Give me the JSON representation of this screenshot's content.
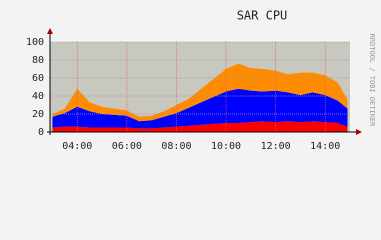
{
  "chart_data": {
    "type": "stacked-area",
    "title": "SAR CPU",
    "credit": "RRDTOOL / TOBI OETIKER",
    "x": [
      3.0,
      3.5,
      4.0,
      4.5,
      5.0,
      5.5,
      6.0,
      6.5,
      7.0,
      7.5,
      8.0,
      8.5,
      9.0,
      9.5,
      10.0,
      10.5,
      11.0,
      11.5,
      12.0,
      12.5,
      13.0,
      13.5,
      14.0,
      14.5,
      14.9
    ],
    "series": [
      {
        "color": "#ff0000",
        "values": [
          5,
          6,
          6,
          5,
          5,
          5,
          5,
          4,
          4,
          5,
          6,
          7,
          8,
          9,
          10,
          10,
          11,
          12,
          11,
          12,
          11,
          12,
          11,
          10,
          6
        ]
      },
      {
        "color": "#0000ff",
        "values": [
          12,
          15,
          22,
          18,
          15,
          14,
          13,
          8,
          9,
          12,
          15,
          20,
          25,
          30,
          35,
          38,
          35,
          33,
          35,
          32,
          30,
          32,
          30,
          25,
          20
        ]
      },
      {
        "color": "#ff8c00",
        "values": [
          3,
          5,
          20,
          10,
          8,
          7,
          6,
          5,
          5,
          6,
          9,
          10,
          15,
          20,
          25,
          28,
          25,
          25,
          22,
          20,
          25,
          22,
          22,
          20,
          10
        ]
      }
    ],
    "xlim": [
      2.9,
      15.0
    ],
    "xticks": [
      {
        "value": 4,
        "label": "04:00"
      },
      {
        "value": 6,
        "label": "06:00"
      },
      {
        "value": 8,
        "label": "08:00"
      },
      {
        "value": 10,
        "label": "10:00"
      },
      {
        "value": 12,
        "label": "12:00"
      },
      {
        "value": 14,
        "label": "14:00"
      }
    ],
    "ylim": [
      0,
      100
    ],
    "yticks": [
      0,
      20,
      40,
      60,
      80,
      100
    ],
    "grid": true
  }
}
